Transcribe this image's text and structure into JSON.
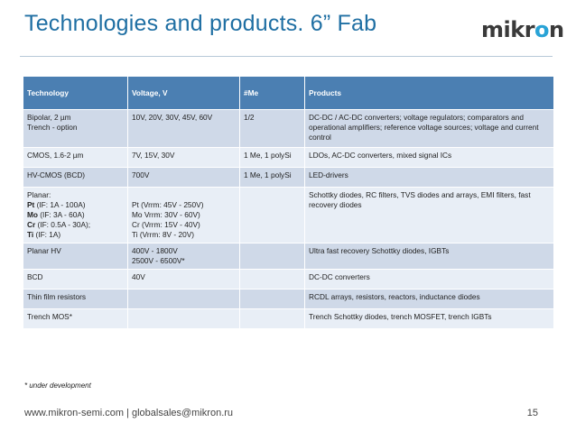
{
  "slide": {
    "title": "Technologies and products. 6” Fab",
    "logo": {
      "part1": "mikr",
      "part2": "o",
      "part3": "n"
    },
    "note": "* under development",
    "footer": "www.mikron-semi.com | globalsales@mikron.ru",
    "page_number": "15"
  },
  "table": {
    "headers": [
      "Technology",
      "Voltage, V",
      "#Me",
      "Products"
    ],
    "rows": [
      {
        "tech": [
          "Bipolar, 2 µm",
          "Trench - option"
        ],
        "voltage": [
          "10V, 20V, 30V, 45V, 60V"
        ],
        "me": "1/2",
        "products": "DC-DC / AC-DC converters; voltage regulators; comparators and operational amplifiers; reference voltage sources; voltage and current control"
      },
      {
        "tech": [
          "CMOS, 1.6-2 µm"
        ],
        "voltage": [
          "7V, 15V, 30V"
        ],
        "me": "1 Me, 1 polySi",
        "products": "LDOs, AC-DC converters, mixed signal ICs"
      },
      {
        "tech": [
          "HV-CMOS (BCD)"
        ],
        "voltage": [
          "700V"
        ],
        "me": "1 Me, 1 polySi",
        "products": "LED-drivers"
      },
      {
        "tech_title": "Planar:",
        "tech_lines": [
          {
            "b": "Pt",
            "t": " (IF: 1A - 100A)"
          },
          {
            "b": "Mo",
            "t": " (IF: 3A - 60A)"
          },
          {
            "b": "Cr",
            "t": " (IF: 0.5A - 30A);"
          },
          {
            "b": "Ti",
            "t": " (IF: 1A)"
          }
        ],
        "voltage": [
          "Pt (Vrrm: 45V - 250V)",
          "Mo Vrrm: 30V - 60V)",
          "Cr (Vrrm: 15V - 40V)",
          "Ti (Vrrm: 8V - 20V)"
        ],
        "me": "",
        "products": "Schottky diodes, RC filters, TVS diodes and arrays, EMI filters, fast recovery diodes"
      },
      {
        "tech": [
          "Planar HV"
        ],
        "voltage": [
          "400V - 1800V",
          "2500V - 6500V*"
        ],
        "me": "",
        "products": "Ultra fast recovery Schottky diodes, IGBTs"
      },
      {
        "tech": [
          "BCD"
        ],
        "voltage": [
          "40V"
        ],
        "me": "",
        "products": "DC-DC converters"
      },
      {
        "tech": [
          "Thin film resistors"
        ],
        "voltage": [
          ""
        ],
        "me": "",
        "products": "RCDL arrays, resistors, reactors, inductance diodes"
      },
      {
        "tech": [
          "Trench MOS*"
        ],
        "voltage": [
          ""
        ],
        "me": "",
        "products": "Trench Schottky diodes, trench MOSFET, trench IGBTs"
      }
    ]
  }
}
